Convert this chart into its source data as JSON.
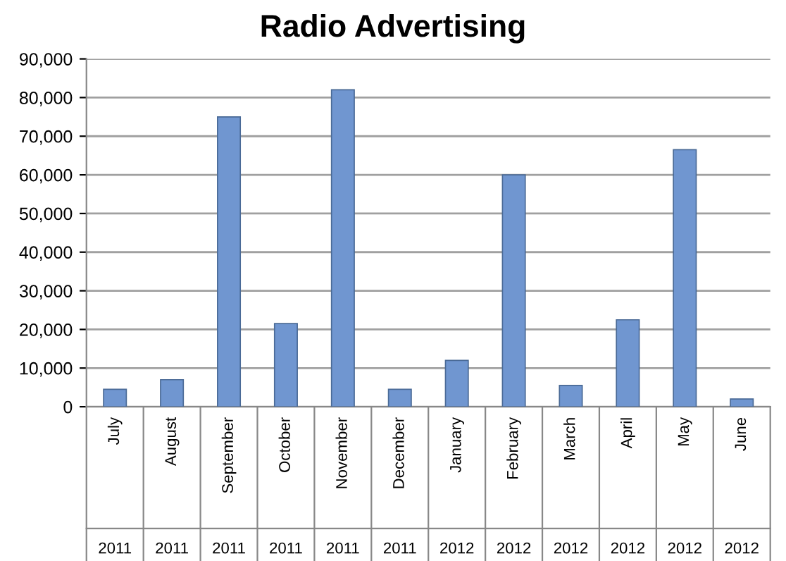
{
  "chart_data": {
    "type": "bar",
    "title": "Radio Advertising",
    "categories": [
      "July\n2011",
      "August\n2011",
      "September\n2011",
      "October\n2011",
      "November\n2011",
      "December\n2011",
      "January\n2012",
      "February\n2012",
      "March\n2012",
      "April\n2012",
      "May\n2012",
      "June\n2012"
    ],
    "values": [
      4500,
      7000,
      75000,
      21500,
      82000,
      4500,
      12000,
      60000,
      5500,
      22500,
      66500,
      2000
    ],
    "color": "#7096d0",
    "ylim": [
      0,
      90000
    ],
    "yticks": [
      {
        "value": 0,
        "label": "0"
      },
      {
        "value": 10000,
        "label": "10,000"
      },
      {
        "value": 20000,
        "label": "20,000"
      },
      {
        "value": 30000,
        "label": "30,000"
      },
      {
        "value": 40000,
        "label": "40,000"
      },
      {
        "value": 50000,
        "label": "50,000"
      },
      {
        "value": 60000,
        "label": "60,000"
      },
      {
        "value": 70000,
        "label": "70,000"
      },
      {
        "value": 80000,
        "label": "80,000"
      },
      {
        "value": 90000,
        "label": "90,000"
      }
    ],
    "grid": "y",
    "legend": false
  }
}
